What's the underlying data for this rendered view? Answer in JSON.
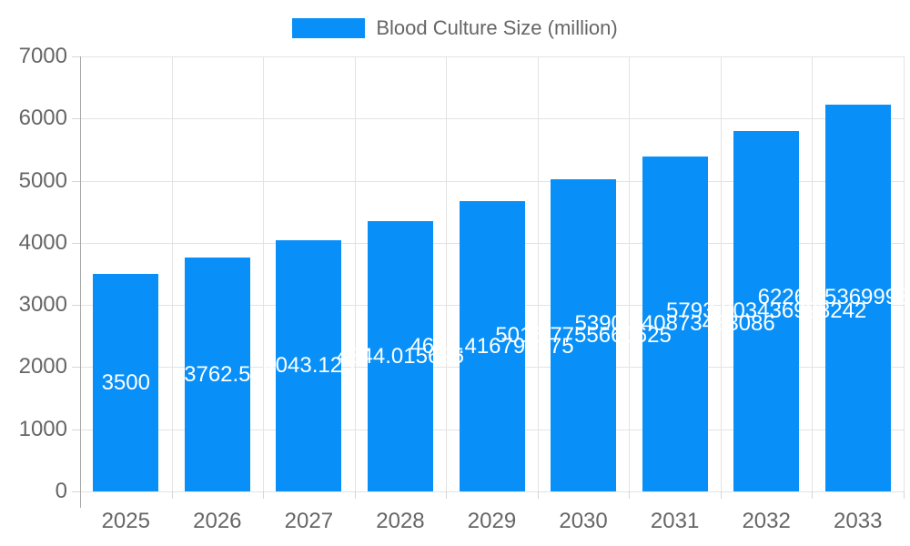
{
  "legend": {
    "label": "Blood Culture Size (million)"
  },
  "colors": {
    "bar": "#0990f8",
    "legend_swatch": "#0990f8",
    "tick_text": "#666666",
    "grid": "#e3e3e3",
    "axis": "#a8a8a8",
    "value_text": "#ffffff",
    "background": "#ffffff"
  },
  "chart_data": {
    "type": "bar",
    "title": "Blood Culture Size (million)",
    "legend_position": "top",
    "grid": true,
    "categories": [
      "2025",
      "2026",
      "2027",
      "2028",
      "2029",
      "2030",
      "2031",
      "2032",
      "2033"
    ],
    "values": [
      3500,
      3762.5,
      4043.125,
      4344.015625,
      4669.416796875,
      5015.7755660625,
      5390.240873483086,
      5793.003436998242,
      6226.753699985242
    ],
    "value_labels": [
      "3500",
      "3762.5",
      "4043.125",
      "4344.015625",
      "4669.416796875",
      "5015.7755660625",
      "5390.240873483086",
      "5793.003436998242",
      "6226.753699985242"
    ],
    "xlabel": "",
    "ylabel": "",
    "ylim": [
      0,
      7000
    ],
    "yticks": [
      0,
      1000,
      2000,
      3000,
      4000,
      5000,
      6000,
      7000
    ]
  }
}
